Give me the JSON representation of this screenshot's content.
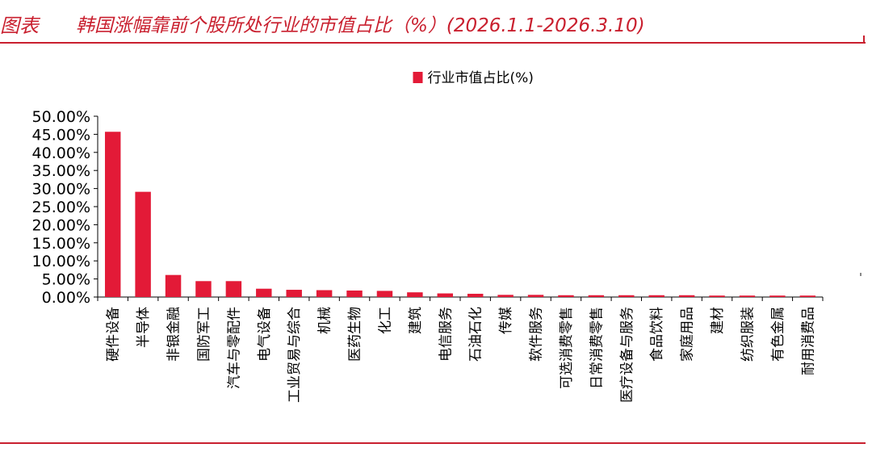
{
  "header": {
    "label": "图表",
    "title": "韩国涨幅靠前个股所处行业的市值占比（%）(2026.1.1-2026.3.10)"
  },
  "colors": {
    "accent": "#c9202f",
    "bar": "#e31a37",
    "axis": "#000000"
  },
  "chart_data": {
    "type": "bar",
    "title": "",
    "xlabel": "",
    "ylabel": "",
    "legend": {
      "position": "top-center",
      "entries": [
        "行业市值占比(%)"
      ]
    },
    "grid": false,
    "ylim": [
      0,
      50
    ],
    "y_ticks": [
      0,
      5,
      10,
      15,
      20,
      25,
      30,
      35,
      40,
      45,
      50
    ],
    "y_tick_labels": [
      "0.00%",
      "5.00%",
      "10.00%",
      "15.00%",
      "20.00%",
      "25.00%",
      "30.00%",
      "35.00%",
      "40.00%",
      "45.00%",
      "50.00%"
    ],
    "categories": [
      "硬件设备",
      "半导体",
      "非银金融",
      "国防军工",
      "汽车与零配件",
      "电气设备",
      "工业贸易与综合",
      "机械",
      "医药生物",
      "化工",
      "建筑",
      "电信服务",
      "石油石化",
      "传媒",
      "软件服务",
      "可选消费零售",
      "日常消费零售",
      "医疗设备与服务",
      "食品饮料",
      "家庭用品",
      "建材",
      "纺织服装",
      "有色金属",
      "耐用消费品"
    ],
    "series": [
      {
        "name": "行业市值占比(%)",
        "values": [
          45.7,
          29.1,
          6.1,
          4.4,
          4.4,
          2.3,
          2.0,
          1.9,
          1.8,
          1.7,
          1.3,
          1.0,
          0.9,
          0.6,
          0.6,
          0.5,
          0.5,
          0.5,
          0.5,
          0.5,
          0.4,
          0.4,
          0.4,
          0.4
        ]
      }
    ]
  }
}
